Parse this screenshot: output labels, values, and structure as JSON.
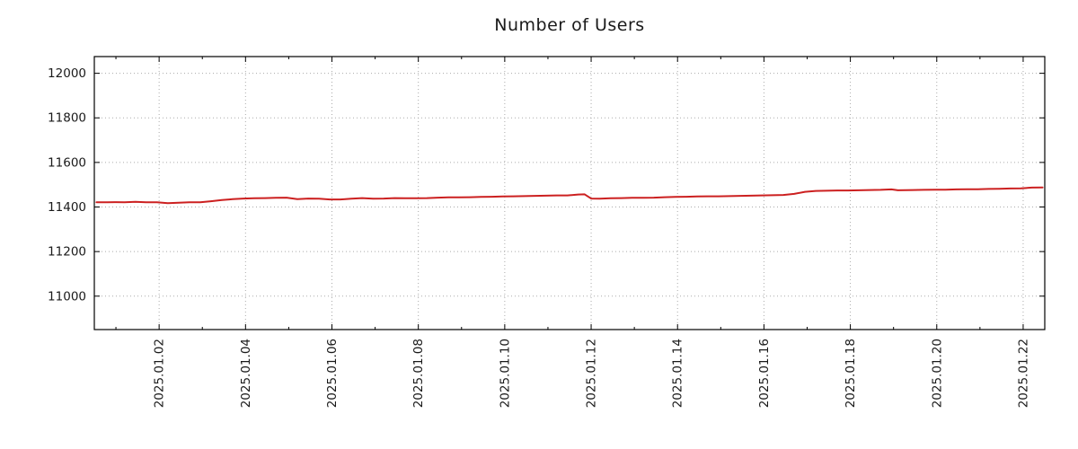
{
  "title": "Number of Users",
  "colors": {
    "line": "#cc2020",
    "grid": "#aaaaaa",
    "axis": "#000000",
    "text": "#1a1a1a",
    "background": "#ffffff"
  },
  "chart_data": {
    "type": "line",
    "title": "Number of Users",
    "xlabel": "",
    "ylabel": "",
    "grid": true,
    "legend_position": "none",
    "x_unit": "date, 2025.01.DD (day of January 2025, fractional days interpolated)",
    "xlim": [
      0.5,
      22.5
    ],
    "ylim": [
      10850,
      12075
    ],
    "yticks": [
      11000,
      11200,
      11400,
      11600,
      11800,
      12000
    ],
    "xticks": [
      {
        "day": 2,
        "label": "2025.01.02"
      },
      {
        "day": 4,
        "label": "2025.01.04"
      },
      {
        "day": 6,
        "label": "2025.01.06"
      },
      {
        "day": 8,
        "label": "2025.01.08"
      },
      {
        "day": 10,
        "label": "2025.01.10"
      },
      {
        "day": 12,
        "label": "2025.01.12"
      },
      {
        "day": 14,
        "label": "2025.01.14"
      },
      {
        "day": 16,
        "label": "2025.01.16"
      },
      {
        "day": 18,
        "label": "2025.01.18"
      },
      {
        "day": 20,
        "label": "2025.01.20"
      },
      {
        "day": 22,
        "label": "2025.01.22"
      }
    ],
    "minor_xticks_every_day": true,
    "series": [
      {
        "name": "Number of Users",
        "color": "#cc2020",
        "points": [
          [
            0.55,
            11421
          ],
          [
            0.8,
            11421
          ],
          [
            1.0,
            11422
          ],
          [
            1.2,
            11421
          ],
          [
            1.45,
            11423
          ],
          [
            1.7,
            11421
          ],
          [
            1.95,
            11421
          ],
          [
            2.2,
            11417
          ],
          [
            2.45,
            11419
          ],
          [
            2.7,
            11421
          ],
          [
            2.95,
            11421
          ],
          [
            3.2,
            11426
          ],
          [
            3.45,
            11431
          ],
          [
            3.7,
            11435
          ],
          [
            3.95,
            11438
          ],
          [
            4.2,
            11439
          ],
          [
            4.45,
            11440
          ],
          [
            4.7,
            11441
          ],
          [
            4.95,
            11442
          ],
          [
            5.2,
            11435
          ],
          [
            5.45,
            11438
          ],
          [
            5.7,
            11437
          ],
          [
            5.95,
            11434
          ],
          [
            6.2,
            11434
          ],
          [
            6.45,
            11437
          ],
          [
            6.7,
            11440
          ],
          [
            6.95,
            11437
          ],
          [
            7.2,
            11438
          ],
          [
            7.45,
            11440
          ],
          [
            7.7,
            11439
          ],
          [
            7.95,
            11439
          ],
          [
            8.2,
            11440
          ],
          [
            8.45,
            11442
          ],
          [
            8.7,
            11443
          ],
          [
            8.95,
            11443
          ],
          [
            9.2,
            11444
          ],
          [
            9.45,
            11445
          ],
          [
            9.7,
            11446
          ],
          [
            9.95,
            11447
          ],
          [
            10.2,
            11448
          ],
          [
            10.45,
            11449
          ],
          [
            10.7,
            11450
          ],
          [
            10.95,
            11451
          ],
          [
            11.2,
            11452
          ],
          [
            11.45,
            11452
          ],
          [
            11.7,
            11456
          ],
          [
            11.85,
            11457
          ],
          [
            12.0,
            11438
          ],
          [
            12.2,
            11437
          ],
          [
            12.45,
            11439
          ],
          [
            12.7,
            11440
          ],
          [
            12.95,
            11441
          ],
          [
            13.2,
            11441
          ],
          [
            13.45,
            11442
          ],
          [
            13.7,
            11444
          ],
          [
            13.95,
            11445
          ],
          [
            14.2,
            11446
          ],
          [
            14.45,
            11447
          ],
          [
            14.7,
            11448
          ],
          [
            14.95,
            11448
          ],
          [
            15.2,
            11449
          ],
          [
            15.45,
            11450
          ],
          [
            15.7,
            11451
          ],
          [
            15.95,
            11452
          ],
          [
            16.2,
            11453
          ],
          [
            16.45,
            11454
          ],
          [
            16.7,
            11459
          ],
          [
            16.95,
            11468
          ],
          [
            17.2,
            11472
          ],
          [
            17.45,
            11473
          ],
          [
            17.7,
            11474
          ],
          [
            17.95,
            11474
          ],
          [
            18.2,
            11475
          ],
          [
            18.45,
            11476
          ],
          [
            18.7,
            11477
          ],
          [
            18.95,
            11479
          ],
          [
            19.1,
            11475
          ],
          [
            19.45,
            11476
          ],
          [
            19.7,
            11477
          ],
          [
            19.95,
            11478
          ],
          [
            20.2,
            11478
          ],
          [
            20.45,
            11479
          ],
          [
            20.7,
            11480
          ],
          [
            20.95,
            11480
          ],
          [
            21.2,
            11481
          ],
          [
            21.45,
            11482
          ],
          [
            21.7,
            11483
          ],
          [
            21.95,
            11484
          ],
          [
            22.2,
            11487
          ],
          [
            22.45,
            11488
          ]
        ]
      }
    ]
  }
}
